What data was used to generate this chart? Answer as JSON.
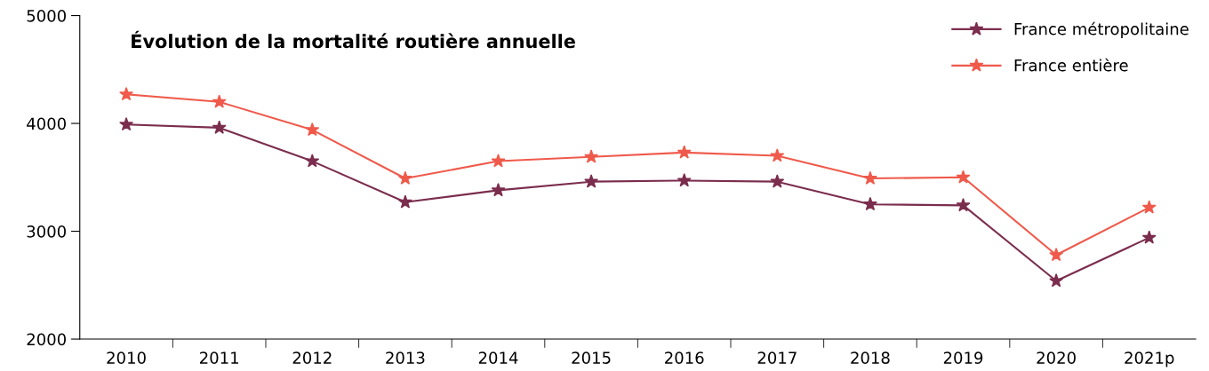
{
  "chart_data": {
    "type": "line",
    "title": "Évolution de la mortalité routière annuelle",
    "categories": [
      "2010",
      "2011",
      "2012",
      "2013",
      "2014",
      "2015",
      "2016",
      "2017",
      "2018",
      "2019",
      "2020",
      "2021p"
    ],
    "series": [
      {
        "name": "France métropolitaine",
        "color": "#7b2d4e",
        "values": [
          3990,
          3960,
          3650,
          3270,
          3380,
          3460,
          3470,
          3460,
          3250,
          3240,
          2540,
          2940
        ]
      },
      {
        "name": "France entière",
        "color": "#ef5a4b",
        "values": [
          4270,
          4200,
          3940,
          3490,
          3650,
          3690,
          3730,
          3700,
          3490,
          3500,
          2780,
          3220
        ]
      }
    ],
    "ylim": [
      2000,
      5000
    ],
    "yticks": [
      2000,
      3000,
      4000,
      5000
    ],
    "grid": false,
    "legend": "top right",
    "marker": "star",
    "line_style": "solid"
  }
}
